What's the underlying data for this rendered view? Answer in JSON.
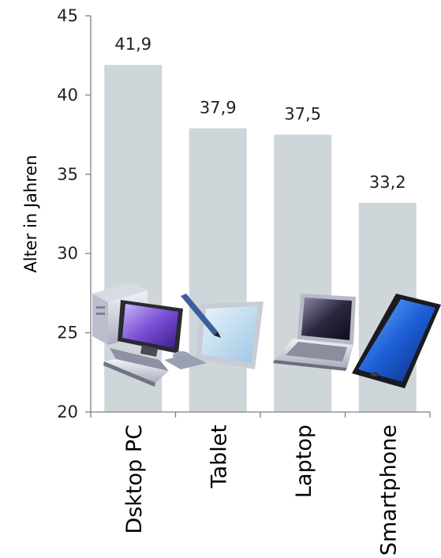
{
  "chart_data": {
    "type": "bar",
    "categories": [
      "Dsktop PC",
      "Tablet",
      "Laptop",
      "Smartphone"
    ],
    "values": [
      41.9,
      37.9,
      37.5,
      33.2
    ],
    "value_labels": [
      "41,9",
      "37,9",
      "37,5",
      "33,2"
    ],
    "title": "",
    "xlabel": "",
    "ylabel": "Alter in Jahren",
    "ylim": [
      20,
      45
    ],
    "yticks": [
      20,
      25,
      30,
      35,
      40,
      45
    ],
    "grid": false,
    "legend": "none",
    "bar_color": "#cfd6da",
    "icons": [
      "desktop-pc-icon",
      "tablet-icon",
      "laptop-icon",
      "smartphone-icon"
    ]
  }
}
